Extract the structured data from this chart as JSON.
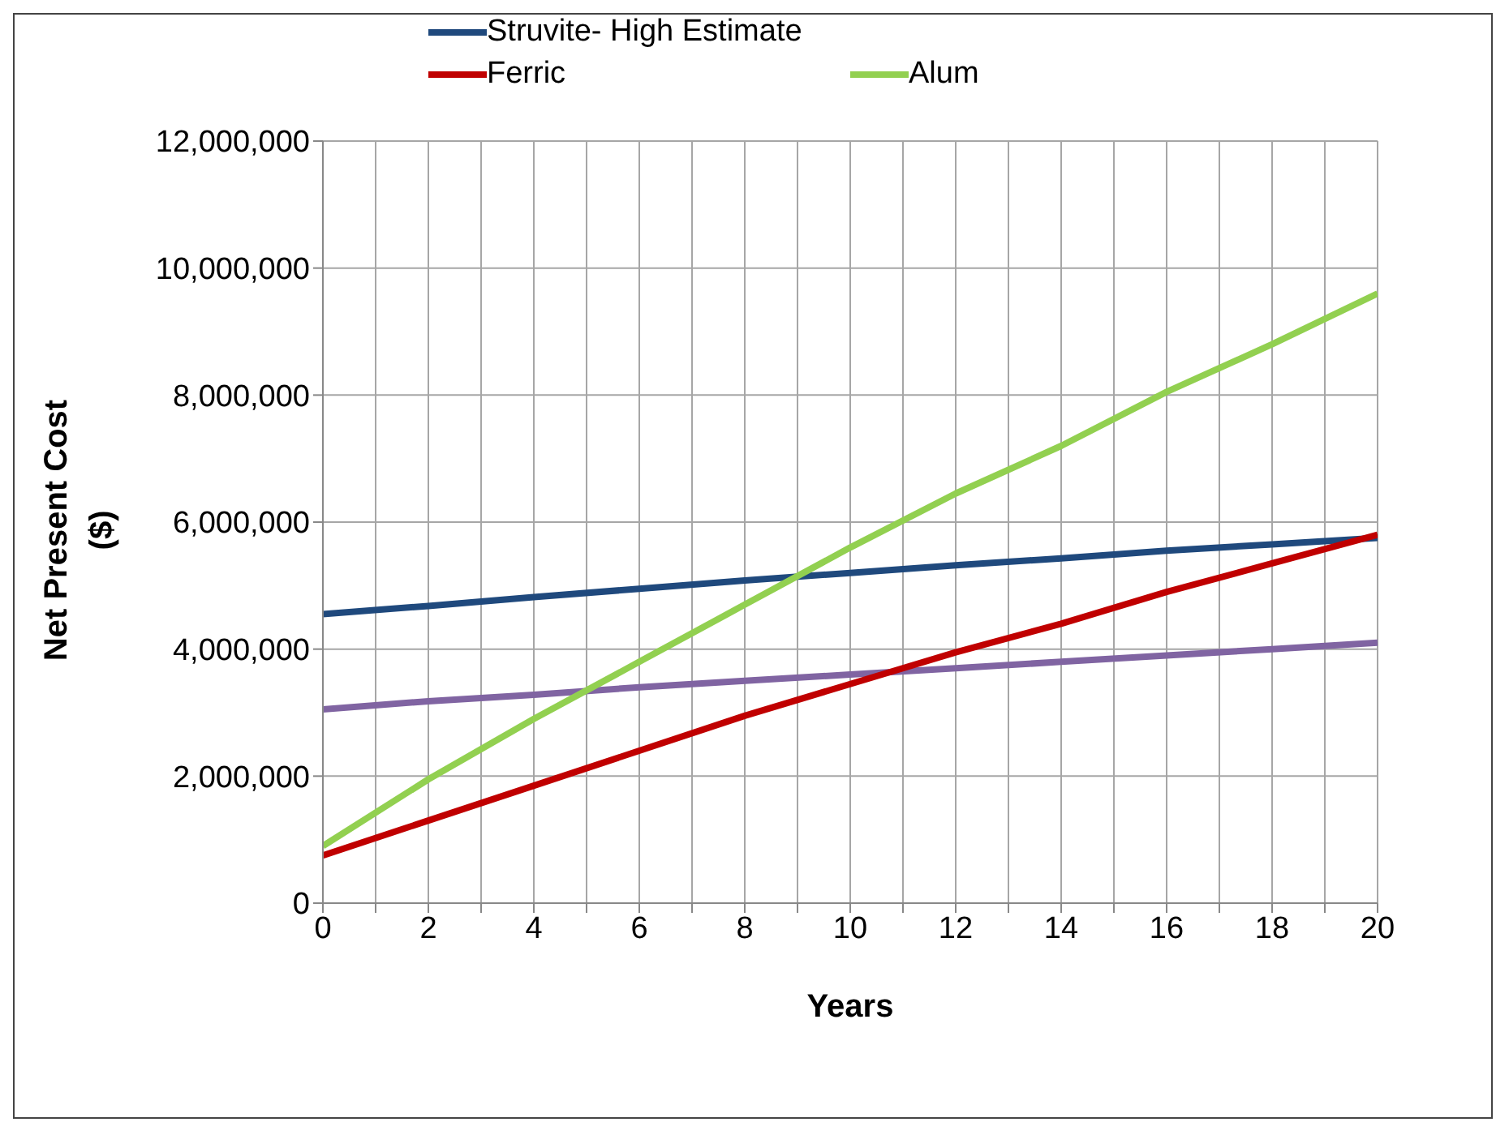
{
  "chart_data": {
    "type": "line",
    "xlabel": "Years",
    "ylabel": "Net Present Cost ($)",
    "x": [
      0,
      2,
      4,
      6,
      8,
      10,
      12,
      14,
      16,
      18,
      20
    ],
    "series": [
      {
        "name": "Struvite- High Estimate",
        "color": "#1f497d",
        "values": [
          4550000,
          4680000,
          4820000,
          4950000,
          5080000,
          5200000,
          5320000,
          5430000,
          5550000,
          5650000,
          5750000
        ]
      },
      {
        "color": "#8064a2",
        "values": [
          3050000,
          3180000,
          3280000,
          3400000,
          3500000,
          3600000,
          3700000,
          3800000,
          3900000,
          4000000,
          4100000
        ]
      },
      {
        "name": "Ferric",
        "color": "#c00000",
        "values": [
          750000,
          1300000,
          1850000,
          2400000,
          2950000,
          3450000,
          3950000,
          4400000,
          4900000,
          5350000,
          5800000
        ]
      },
      {
        "name": "Alum",
        "color": "#92d050",
        "values": [
          900000,
          1950000,
          2900000,
          3800000,
          4700000,
          5600000,
          6450000,
          7200000,
          8050000,
          8800000,
          9600000
        ]
      }
    ],
    "xlim": [
      0,
      20
    ],
    "xticks": [
      0,
      {
        "value": 1,
        "label": null
      },
      2,
      {
        "value": 3,
        "label": null
      },
      4,
      {
        "value": 5,
        "label": null
      },
      6,
      {
        "value": 7,
        "label": null
      },
      8,
      {
        "value": 9,
        "label": null
      },
      10,
      {
        "value": 11,
        "label": null
      },
      12,
      {
        "value": 13,
        "label": null
      },
      14,
      {
        "value": 15,
        "label": null
      },
      16,
      {
        "value": 17,
        "label": null
      },
      18,
      {
        "value": 19,
        "label": null
      },
      20
    ],
    "ylim": [
      0,
      12000000
    ],
    "yticks": [
      0,
      {
        "value": 2000000,
        "label": "2,000,000"
      },
      {
        "value": 4000000,
        "label": "4,000,000"
      },
      {
        "value": 6000000,
        "label": "6,000,000"
      },
      {
        "value": 8000000,
        "label": "8,000,000"
      },
      {
        "value": 10000000,
        "label": "10,000,000"
      },
      {
        "value": 12000000,
        "label": "12,000,000"
      }
    ],
    "grid": true,
    "legend": "top",
    "marker": "none",
    "line_style": "solid"
  }
}
